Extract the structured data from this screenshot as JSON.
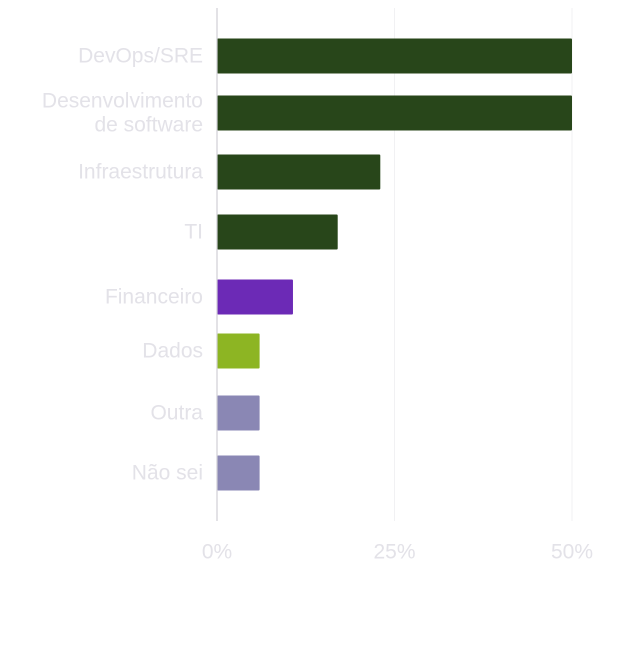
{
  "chart_data": {
    "type": "bar",
    "orientation": "horizontal",
    "categories": [
      "DevOps/SRE",
      "Desenvolvimento de software",
      "Infraestrutura",
      "TI",
      "Financeiro",
      "Dados",
      "Outra",
      "Não sei"
    ],
    "category_lines": [
      [
        "DevOps/SRE"
      ],
      [
        "Desenvolvimento",
        "de software"
      ],
      [
        "Infraestrutura"
      ],
      [
        "TI"
      ],
      [
        "Financeiro"
      ],
      [
        "Dados"
      ],
      [
        "Outra"
      ],
      [
        "Não sei"
      ]
    ],
    "values": [
      50,
      50,
      23,
      17,
      10.7,
      6,
      6,
      6
    ],
    "colors": [
      "#28461a",
      "#28461a",
      "#28461a",
      "#28461a",
      "#6c2ab6",
      "#8db523",
      "#8a87b4",
      "#8a87b4"
    ],
    "xlim": [
      0,
      50
    ],
    "xticks": [
      0,
      25,
      50
    ],
    "xtick_labels": [
      "0%",
      "25%",
      "50%"
    ],
    "title": "",
    "xlabel": "",
    "ylabel": "",
    "grid": true,
    "legend": "none"
  }
}
